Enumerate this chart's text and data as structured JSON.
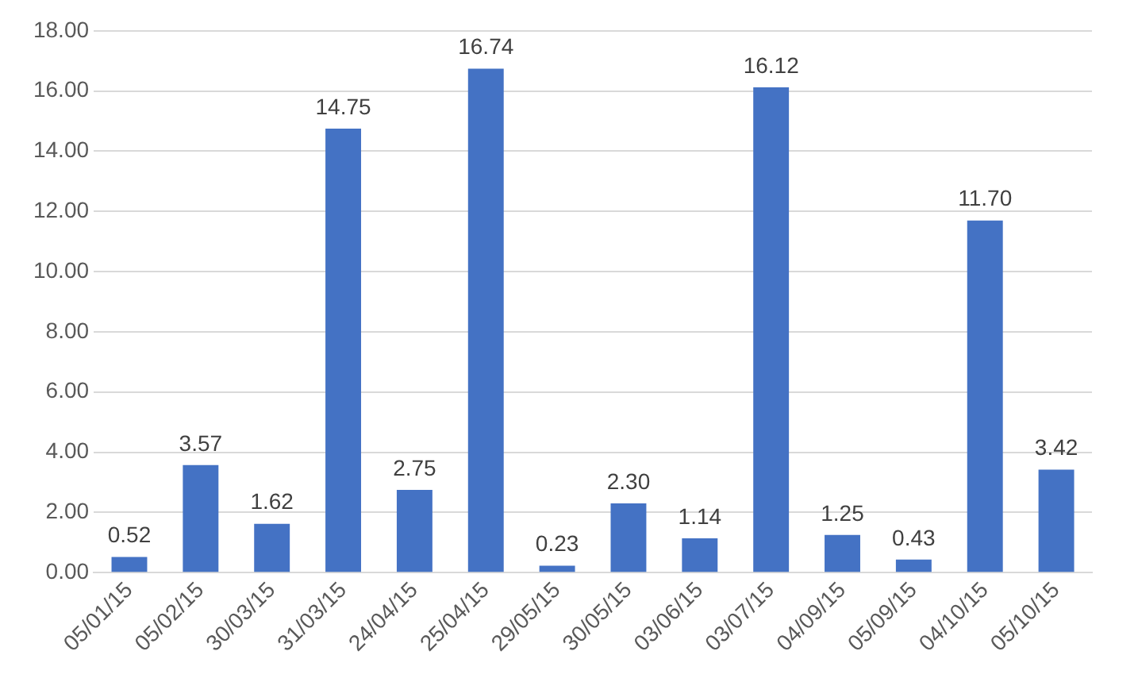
{
  "chart_data": {
    "type": "bar",
    "categories": [
      "05/01/15",
      "05/02/15",
      "30/03/15",
      "31/03/15",
      "24/04/15",
      "25/04/15",
      "29/05/15",
      "30/05/15",
      "03/06/15",
      "03/07/15",
      "04/09/15",
      "05/09/15",
      "04/10/15",
      "05/10/15"
    ],
    "values": [
      0.52,
      3.57,
      1.62,
      14.75,
      2.75,
      16.74,
      0.23,
      2.3,
      1.14,
      16.12,
      1.25,
      0.43,
      11.7,
      3.42
    ],
    "value_labels": [
      "0.52",
      "3.57",
      "1.62",
      "14.75",
      "2.75",
      "16.74",
      "0.23",
      "2.30",
      "1.14",
      "16.12",
      "1.25",
      "0.43",
      "11.70",
      "3.42"
    ],
    "color": "#4472c4",
    "ylim": [
      0,
      18
    ],
    "yticks": [
      {
        "value": 0,
        "label": "0.00"
      },
      {
        "value": 2,
        "label": "2.00"
      },
      {
        "value": 4,
        "label": "4.00"
      },
      {
        "value": 6,
        "label": "6.00"
      },
      {
        "value": 8,
        "label": "8.00"
      },
      {
        "value": 10,
        "label": "10.00"
      },
      {
        "value": 12,
        "label": "12.00"
      },
      {
        "value": 14,
        "label": "14.00"
      },
      {
        "value": 16,
        "label": "16.00"
      },
      {
        "value": 18,
        "label": "18.00"
      }
    ],
    "grid": "y",
    "legend": false
  }
}
